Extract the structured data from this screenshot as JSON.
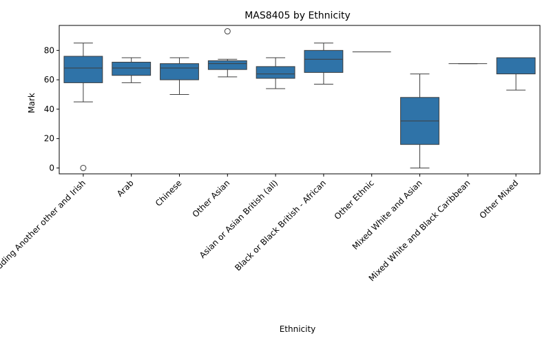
{
  "chart_data": {
    "type": "boxplot",
    "title": "MAS8405 by Ethnicity",
    "xlabel": "Ethnicity",
    "ylabel": "Mark",
    "ylim": [
      -4,
      97
    ],
    "yticks": [
      0,
      20,
      40,
      60,
      80
    ],
    "grid": false,
    "legend": "none",
    "box_color": "#2f73a8",
    "line_color": "#3d3d3d",
    "categories": [
      "White including Another other and Irish",
      "Arab",
      "Chinese",
      "Other Asian",
      "Asian or Asian British (all)",
      "Black or Black British - African",
      "Other Ethnic",
      "Mixed White and Asian",
      "Mixed White and Black Caribbean",
      "Other Mixed"
    ],
    "boxes": [
      {
        "whisker_low": 45,
        "q1": 58,
        "median": 68,
        "q3": 76,
        "whisker_high": 85,
        "outliers": [
          0
        ]
      },
      {
        "whisker_low": 58,
        "q1": 63,
        "median": 68,
        "q3": 72,
        "whisker_high": 75,
        "outliers": []
      },
      {
        "whisker_low": 50,
        "q1": 60,
        "median": 68,
        "q3": 71,
        "whisker_high": 75,
        "outliers": []
      },
      {
        "whisker_low": 62,
        "q1": 67,
        "median": 71,
        "q3": 73,
        "whisker_high": 74,
        "outliers": [
          93
        ]
      },
      {
        "whisker_low": 54,
        "q1": 61,
        "median": 64,
        "q3": 69,
        "whisker_high": 75,
        "outliers": []
      },
      {
        "whisker_low": 57,
        "q1": 65,
        "median": 74,
        "q3": 80,
        "whisker_high": 85,
        "outliers": []
      },
      {
        "whisker_low": 79,
        "q1": 79,
        "median": 79,
        "q3": 79,
        "whisker_high": 79,
        "outliers": []
      },
      {
        "whisker_low": 0,
        "q1": 16,
        "median": 32,
        "q3": 48,
        "whisker_high": 64,
        "outliers": []
      },
      {
        "whisker_low": 71,
        "q1": 71,
        "median": 71,
        "q3": 71,
        "whisker_high": 71,
        "outliers": []
      },
      {
        "whisker_low": 53,
        "q1": 64,
        "median": 75,
        "q3": 75,
        "whisker_high": 75,
        "outliers": []
      }
    ]
  }
}
